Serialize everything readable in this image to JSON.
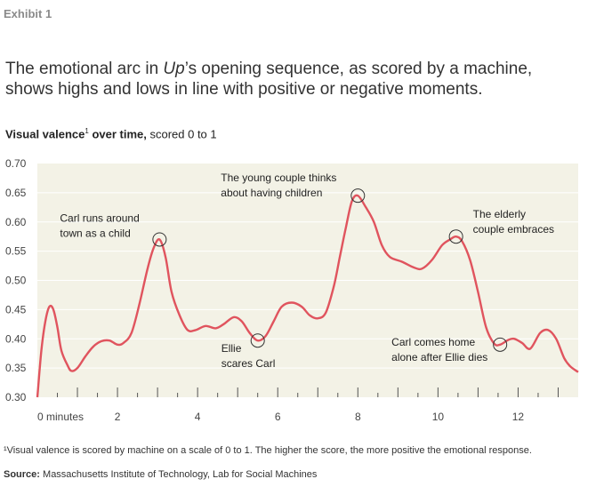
{
  "exhibit_label": "Exhibit 1",
  "headline_pre": "The emotional arc in ",
  "headline_film": "Up",
  "headline_post": "’s opening sequence, as scored by a machine, shows highs and lows in line with positive or negative moments.",
  "subtitle_bold": "Visual valence",
  "subtitle_sup": "1",
  "subtitle_bold_tail": " over time,",
  "subtitle_rest": " scored 0 to 1",
  "footnote": "¹Visual valence is scored by machine on a scale of 0 to 1. The higher the score, the more positive the emotional response.",
  "source_label": "Source:",
  "source_text": "Massachusetts Institute of Technology, Lab for Social Machines",
  "colors": {
    "line": "#e0545e",
    "plot_bg": "#f3f2e6",
    "grid": "#ffffff",
    "tick": "#555555"
  },
  "chart_data": {
    "type": "line",
    "title": "Visual valence¹ over time, scored 0 to 1",
    "xlabel": "",
    "ylabel": "",
    "xlim": [
      0,
      13.5
    ],
    "ylim": [
      0.3,
      0.7
    ],
    "x_ticks": [
      0,
      2,
      4,
      6,
      8,
      10,
      12
    ],
    "x_tick_labels": [
      "0 minutes",
      "2",
      "4",
      "6",
      "8",
      "10",
      "12"
    ],
    "y_ticks": [
      0.3,
      0.35,
      0.4,
      0.45,
      0.5,
      0.55,
      0.6,
      0.65,
      0.7
    ],
    "y_tick_labels": [
      "0.30",
      "0.35",
      "0.40",
      "0.45",
      "0.50",
      "0.55",
      "0.60",
      "0.65",
      "0.70"
    ],
    "grid": "horizontal",
    "series": [
      {
        "values": [
          [
            0.0,
            0.3
          ],
          [
            0.1,
            0.38
          ],
          [
            0.2,
            0.43
          ],
          [
            0.3,
            0.455
          ],
          [
            0.4,
            0.45
          ],
          [
            0.5,
            0.42
          ],
          [
            0.6,
            0.38
          ],
          [
            0.75,
            0.355
          ],
          [
            0.85,
            0.345
          ],
          [
            1.0,
            0.35
          ],
          [
            1.2,
            0.37
          ],
          [
            1.4,
            0.387
          ],
          [
            1.6,
            0.396
          ],
          [
            1.8,
            0.397
          ],
          [
            2.0,
            0.39
          ],
          [
            2.15,
            0.393
          ],
          [
            2.35,
            0.41
          ],
          [
            2.55,
            0.46
          ],
          [
            2.75,
            0.52
          ],
          [
            2.9,
            0.555
          ],
          [
            3.05,
            0.57
          ],
          [
            3.2,
            0.54
          ],
          [
            3.35,
            0.48
          ],
          [
            3.55,
            0.44
          ],
          [
            3.75,
            0.415
          ],
          [
            3.95,
            0.415
          ],
          [
            4.2,
            0.422
          ],
          [
            4.45,
            0.418
          ],
          [
            4.65,
            0.425
          ],
          [
            4.9,
            0.437
          ],
          [
            5.1,
            0.43
          ],
          [
            5.3,
            0.41
          ],
          [
            5.5,
            0.397
          ],
          [
            5.7,
            0.405
          ],
          [
            5.9,
            0.43
          ],
          [
            6.1,
            0.455
          ],
          [
            6.35,
            0.462
          ],
          [
            6.6,
            0.455
          ],
          [
            6.8,
            0.44
          ],
          [
            7.0,
            0.435
          ],
          [
            7.2,
            0.445
          ],
          [
            7.4,
            0.49
          ],
          [
            7.55,
            0.54
          ],
          [
            7.7,
            0.59
          ],
          [
            7.85,
            0.635
          ],
          [
            8.0,
            0.645
          ],
          [
            8.2,
            0.625
          ],
          [
            8.4,
            0.6
          ],
          [
            8.6,
            0.56
          ],
          [
            8.8,
            0.54
          ],
          [
            9.1,
            0.532
          ],
          [
            9.4,
            0.522
          ],
          [
            9.6,
            0.52
          ],
          [
            9.85,
            0.535
          ],
          [
            10.1,
            0.56
          ],
          [
            10.3,
            0.57
          ],
          [
            10.45,
            0.575
          ],
          [
            10.6,
            0.567
          ],
          [
            10.8,
            0.535
          ],
          [
            11.0,
            0.48
          ],
          [
            11.2,
            0.42
          ],
          [
            11.4,
            0.392
          ],
          [
            11.55,
            0.39
          ],
          [
            11.75,
            0.398
          ],
          [
            11.9,
            0.4
          ],
          [
            12.1,
            0.393
          ],
          [
            12.3,
            0.383
          ],
          [
            12.55,
            0.41
          ],
          [
            12.75,
            0.415
          ],
          [
            12.95,
            0.4
          ],
          [
            13.15,
            0.367
          ],
          [
            13.3,
            0.353
          ],
          [
            13.5,
            0.343
          ]
        ]
      }
    ],
    "annotations": [
      {
        "lines": [
          "Carl runs around",
          "town as a child"
        ],
        "x": 3.05,
        "y": 0.57
      },
      {
        "lines": [
          "Ellie",
          "scares Carl"
        ],
        "x": 5.5,
        "y": 0.397
      },
      {
        "lines": [
          "The young couple thinks",
          "about having children"
        ],
        "x": 8.0,
        "y": 0.645
      },
      {
        "lines": [
          "The elderly",
          "couple embraces"
        ],
        "x": 10.45,
        "y": 0.575
      },
      {
        "lines": [
          "Carl comes home",
          "alone after Ellie dies"
        ],
        "x": 11.55,
        "y": 0.39
      }
    ]
  }
}
